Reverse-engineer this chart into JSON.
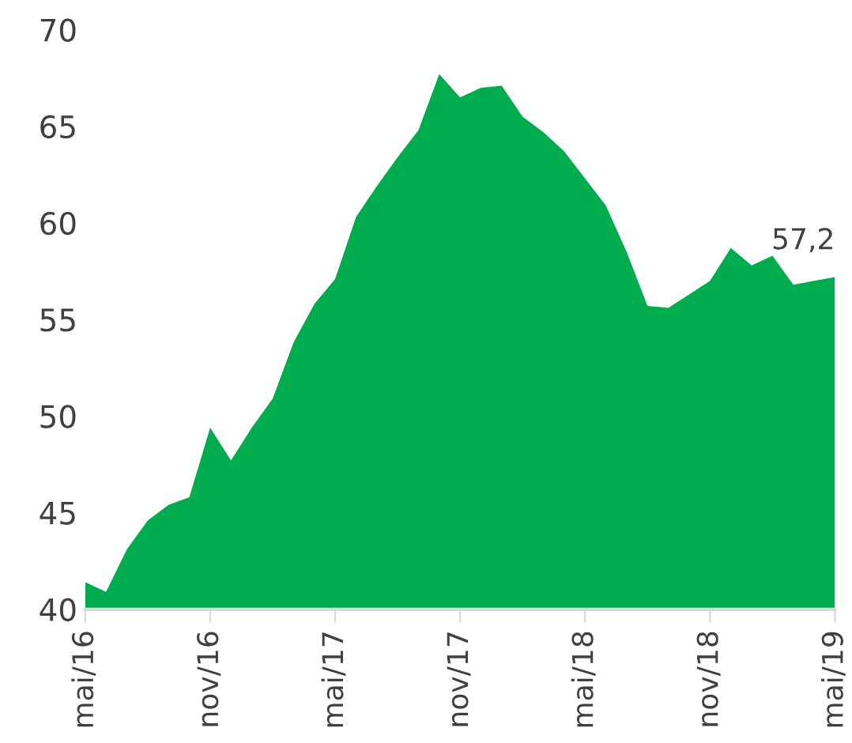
{
  "chart_data": {
    "type": "area",
    "color": "#00ad4e",
    "categories": [
      "mai/16",
      null,
      null,
      null,
      null,
      null,
      "nov/16",
      null,
      null,
      null,
      null,
      null,
      "mai/17",
      null,
      null,
      null,
      null,
      null,
      "nov/17",
      null,
      null,
      null,
      null,
      null,
      "mai/18",
      null,
      null,
      null,
      null,
      null,
      "nov/18",
      null,
      null,
      null,
      null,
      null,
      "mai/19"
    ],
    "values": [
      41.4,
      40.9,
      43.1,
      44.6,
      45.4,
      45.8,
      49.4,
      47.7,
      49.4,
      50.9,
      53.8,
      55.8,
      57.1,
      60.3,
      61.9,
      63.4,
      64.8,
      67.7,
      66.5,
      67.0,
      67.1,
      65.5,
      64.7,
      63.7,
      62.3,
      60.9,
      58.5,
      55.7,
      55.6,
      56.3,
      57.0,
      58.7,
      57.8,
      58.3,
      56.8,
      57.0,
      57.2
    ],
    "value_labels": [
      null,
      null,
      null,
      null,
      null,
      null,
      null,
      null,
      null,
      null,
      null,
      null,
      null,
      null,
      null,
      null,
      null,
      null,
      null,
      null,
      null,
      null,
      null,
      null,
      null,
      null,
      null,
      null,
      null,
      null,
      null,
      null,
      null,
      null,
      null,
      null,
      "57,2"
    ],
    "ylim": [
      40,
      70
    ],
    "yticks": [
      40,
      45,
      50,
      55,
      60,
      65,
      70
    ],
    "grid": false,
    "legend": false
  }
}
